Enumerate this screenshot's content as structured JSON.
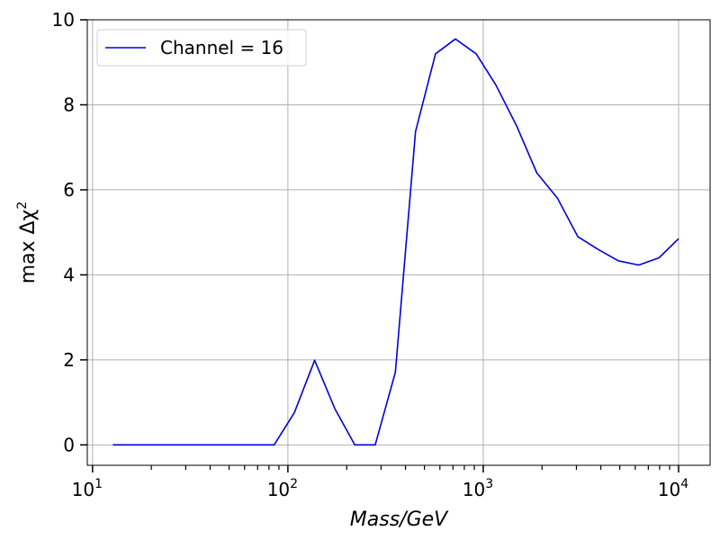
{
  "chart_data": {
    "type": "line",
    "xscale": "log",
    "xlabel": "Mass/GeV",
    "ylabel_prefix": "max Δχ",
    "ylabel_superscript": "2",
    "xlim": [
      9.4,
      14500
    ],
    "ylim": [
      -0.48,
      10.0
    ],
    "grid": true,
    "legend_position": "top-left",
    "yticks": [
      0,
      2,
      4,
      6,
      8,
      10
    ],
    "xticks": [
      {
        "value": 10,
        "base": "10",
        "exp": "1"
      },
      {
        "value": 100,
        "base": "10",
        "exp": "2"
      },
      {
        "value": 1000,
        "base": "10",
        "exp": "3"
      },
      {
        "value": 10000,
        "base": "10",
        "exp": "4"
      }
    ],
    "series": [
      {
        "name": "Channel = 16",
        "color": "#0000dd",
        "x": [
          12.7,
          85,
          108,
          137,
          174,
          220,
          280,
          355,
          450,
          570,
          720,
          920,
          1160,
          1480,
          1880,
          2400,
          3050,
          3870,
          4920,
          6250,
          7940,
          10000
        ],
        "y": [
          0,
          0,
          0.76,
          1.99,
          0.85,
          0,
          0,
          1.71,
          7.37,
          9.2,
          9.55,
          9.2,
          8.47,
          7.51,
          6.4,
          5.8,
          4.9,
          4.6,
          4.33,
          4.23,
          4.4,
          4.85
        ]
      }
    ]
  }
}
